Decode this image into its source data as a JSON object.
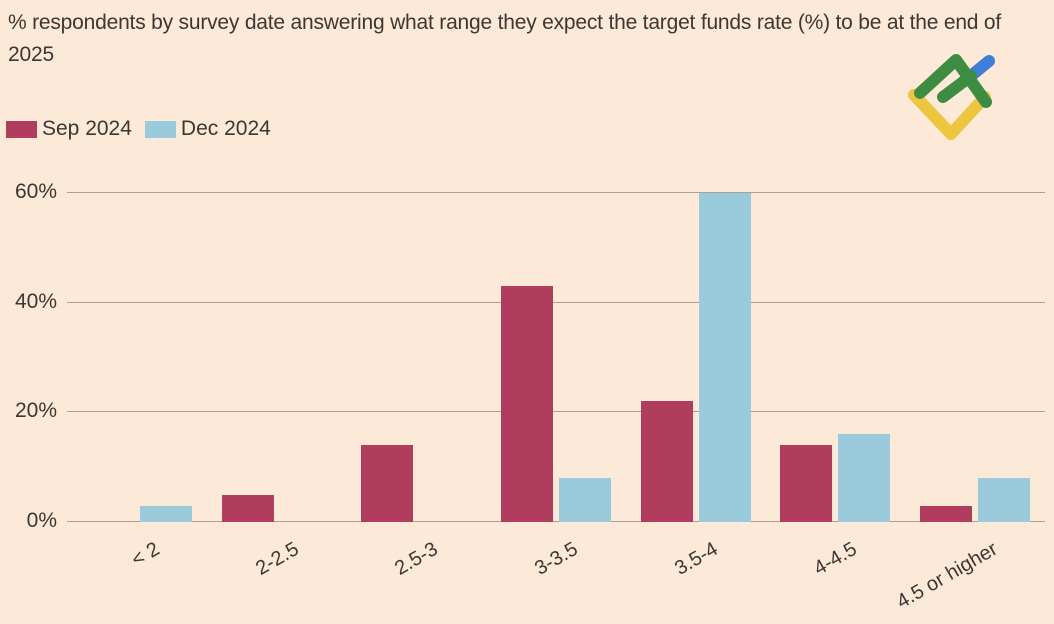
{
  "title": {
    "text": "% respondents by survey date answering what range they expect the target funds rate (%) to be at the end of 2025"
  },
  "legend": {
    "items": [
      {
        "label": "Sep 2024"
      },
      {
        "label": "Dec 2024"
      }
    ]
  },
  "logo": {
    "name": "litefinance-logo",
    "green": "#3e8c41",
    "blue": "#3e7fd8",
    "yellow": "#eec53f"
  },
  "colors": {
    "background": "#fce9d8",
    "text": "#3d3733",
    "gridline": "#ab9f96"
  },
  "chart_data": {
    "type": "bar",
    "title": "% respondents by survey date answering what range they expect the target funds rate (%) to be at the end of 2025",
    "categories": [
      "< 2",
      "2-2.5",
      "2.5-3",
      "3-3.5",
      "3.5-4",
      "4-4.5",
      "4.5 or higher"
    ],
    "series": [
      {
        "name": "Sep 2024",
        "color": "#b03d5d",
        "values": [
          0,
          5,
          14,
          43,
          22,
          14,
          3
        ]
      },
      {
        "name": "Dec 2024",
        "color": "#9acbdd",
        "values": [
          3,
          0,
          0,
          8,
          60,
          16,
          8
        ]
      }
    ],
    "xlabel": "",
    "ylabel": "",
    "ylim": [
      0,
      60
    ],
    "yticks": [
      0,
      20,
      40,
      60
    ],
    "ytick_labels": [
      "0%",
      "20%",
      "40%",
      "60%"
    ],
    "grid": true,
    "legend_position": "top-left"
  }
}
